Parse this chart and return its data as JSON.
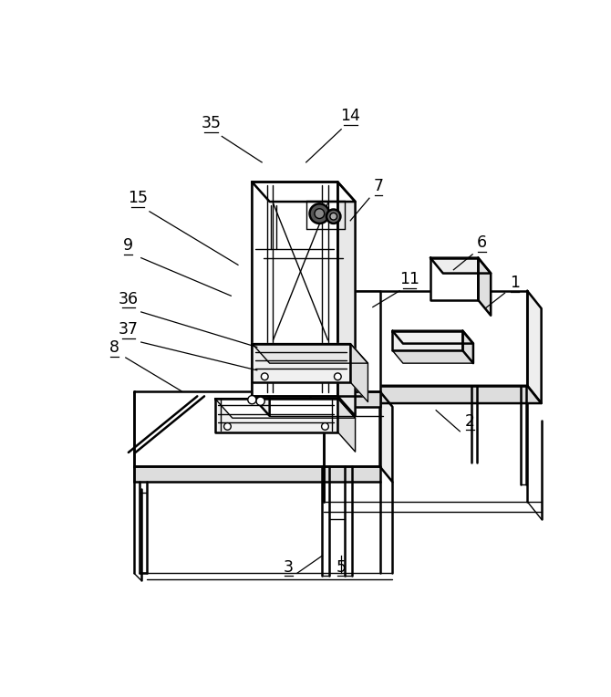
{
  "bg_color": "#ffffff",
  "line_color": "#000000",
  "lw_main": 1.8,
  "lw_thin": 1.0,
  "figsize": [
    6.7,
    7.64
  ],
  "dpi": 100,
  "labels": [
    [
      "1",
      622,
      295,
      608,
      298,
      580,
      320
    ],
    [
      "2",
      558,
      492,
      544,
      495,
      510,
      465
    ],
    [
      "3",
      300,
      700,
      312,
      697,
      348,
      672
    ],
    [
      "5",
      375,
      700,
      375,
      697,
      375,
      672
    ],
    [
      "6",
      575,
      238,
      562,
      243,
      535,
      265
    ],
    [
      "7",
      428,
      158,
      415,
      163,
      388,
      195
    ],
    [
      "8",
      52,
      388,
      68,
      390,
      148,
      438
    ],
    [
      "9",
      72,
      242,
      90,
      248,
      218,
      302
    ],
    [
      "11",
      472,
      290,
      458,
      295,
      420,
      318
    ],
    [
      "14",
      388,
      58,
      375,
      65,
      325,
      112
    ],
    [
      "15",
      85,
      175,
      102,
      182,
      228,
      258
    ],
    [
      "35",
      190,
      68,
      205,
      75,
      262,
      112
    ],
    [
      "36",
      72,
      318,
      90,
      325,
      255,
      375
    ],
    [
      "37",
      72,
      362,
      90,
      368,
      255,
      408
    ]
  ]
}
